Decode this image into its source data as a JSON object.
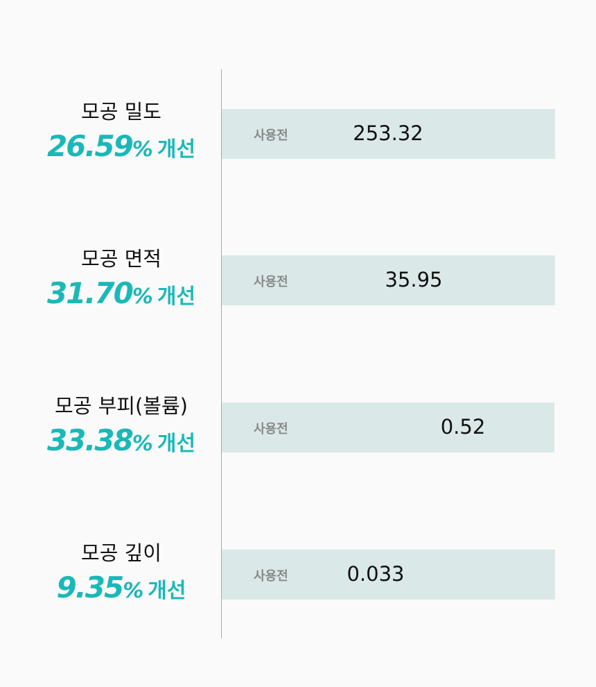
{
  "chart_data": {
    "type": "table",
    "legend_label": "사용전",
    "colors": {
      "accent": "#1bb8b8",
      "bar": "#dae8e7",
      "divider": "#a9a9a9"
    },
    "rows": [
      {
        "label": "모공 밀도",
        "improvement": "26.59",
        "unit": "%",
        "suffix": "개선",
        "tag": "사용전",
        "before_value": "253.32"
      },
      {
        "label": "모공 면적",
        "improvement": "31.70",
        "unit": "%",
        "suffix": "개선",
        "tag": "사용전",
        "before_value": "35.95"
      },
      {
        "label": "모공 부피(볼륨)",
        "improvement": "33.38",
        "unit": "%",
        "suffix": "개선",
        "tag": "사용전",
        "before_value": "0.52"
      },
      {
        "label": "모공 깊이",
        "improvement": "9.35",
        "unit": "%",
        "suffix": "개선",
        "tag": "사용전",
        "before_value": "0.033"
      }
    ]
  }
}
